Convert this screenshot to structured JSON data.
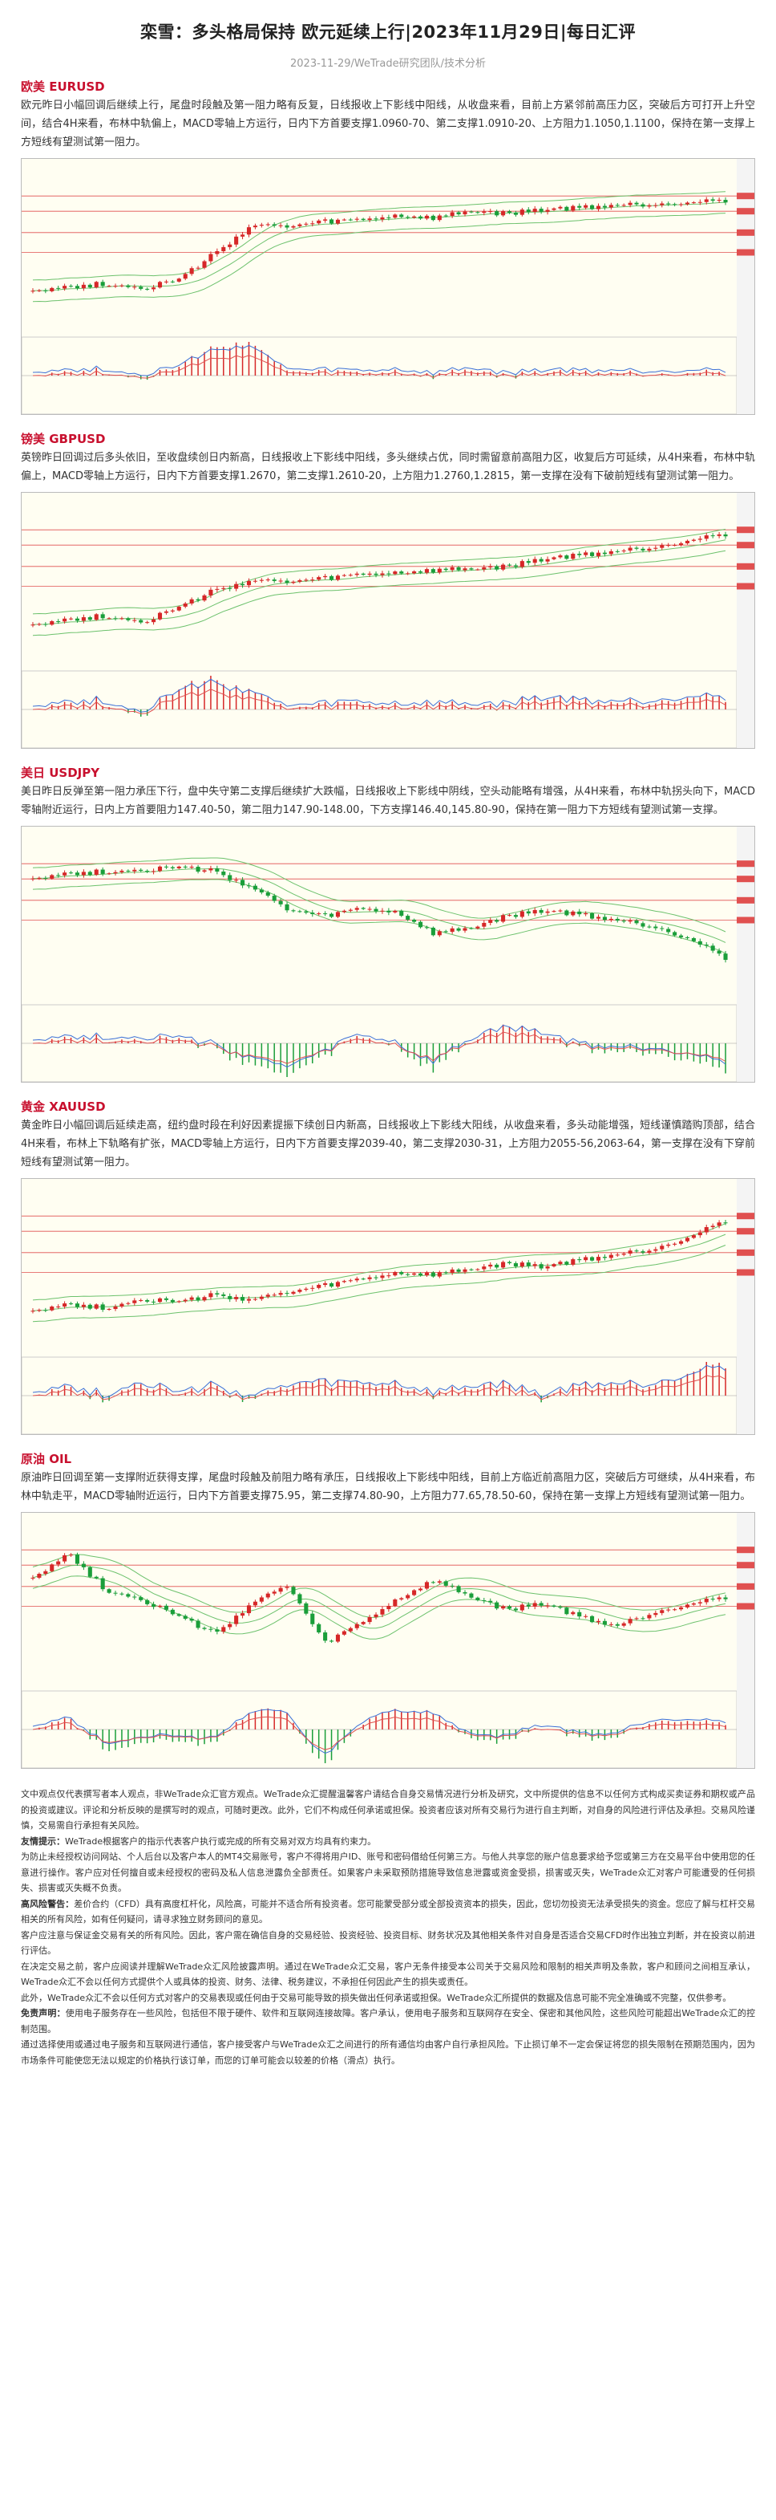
{
  "header": {
    "title": "栾雪：多头格局保持 欧元延续上行|2023年11月29日|每日汇评",
    "subtitle": "2023-11-29/WeTrade研究团队/技术分析"
  },
  "sections": [
    {
      "title": "欧美 EURUSD",
      "text": "欧元昨日小幅回调后继续上行，尾盘时段触及第一阻力略有反复，日线报收上下影线中阳线，从收盘来看，目前上方紧邻前高压力区，突破后方可打开上升空间，结合4H来看，布林中轨偏上，MACD零轴上方运行，日内下方首要支撑1.0960-70、第二支撑1.0910-20、上方阻力1.1050,1.1100，保持在第一支撑上方短线有望测试第一阻力。"
    },
    {
      "title": "镑美 GBPUSD",
      "text": "英镑昨日回调过后多头依旧，至收盘续创日内新高，日线报收上下影线中阳线，多头继续占优，同时需留意前高阻力区，收复后方可延续，从4H来看，布林中轨偏上，MACD零轴上方运行，日内下方首要支撑1.2670，第二支撑1.2610-20，上方阻力1.2760,1.2815，第一支撑在没有下破前短线有望测试第一阻力。"
    },
    {
      "title": "美日 USDJPY",
      "text": "美日昨日反弹至第一阻力承压下行，盘中失守第二支撑后继续扩大跌幅，日线报收上下影线中阴线，空头动能略有增强，从4H来看，布林中轨拐头向下，MACD零轴附近运行，日内上方首要阻力147.40-50，第二阻力147.90-148.00，下方支撑146.40,145.80-90，保持在第一阻力下方短线有望测试第一支撑。"
    },
    {
      "title": "黄金 XAUUSD",
      "text": "黄金昨日小幅回调后延续走高，纽约盘时段在利好因素提振下续创日内新高，日线报收上下影线大阳线，从收盘来看，多头动能增强，短线谨慎踏购顶部，结合4H来看，布林上下轨略有扩张，MACD零轴上方运行，日内下方首要支撑2039-40，第二支撑2030-31，上方阻力2055-56,2063-64，第一支撑在没有下穿前短线有望测试第一阻力。"
    },
    {
      "title": "原油 OIL",
      "text": "原油昨日回调至第一支撑附近获得支撑，尾盘时段触及前阻力略有承压，日线报收上下影线中阳线，目前上方临近前高阻力区，突破后方可继续，从4H来看，布林中轨走平，MACD零轴附近运行，日内下方首要支撑75.95，第二支撑74.80-90，上方阻力77.65,78.50-60，保持在第一支撑上方短线有望测试第一阻力。"
    }
  ],
  "chart_data": [
    {
      "type": "candlestick",
      "series": [
        {
          "name": "EURUSD",
          "trend": "up",
          "values": [
            1.0505,
            1.052,
            1.054,
            1.0515,
            1.056,
            1.071,
            1.087,
            1.086,
            1.089,
            1.09,
            1.0925,
            1.091,
            1.095,
            1.0935,
            1.096,
            1.097,
            1.0985,
            1.099,
            1.1005,
            1.1015
          ]
        }
      ]
    },
    {
      "type": "candlestick",
      "series": [
        {
          "name": "GBPUSD",
          "trend": "up",
          "values": [
            1.227,
            1.229,
            1.231,
            1.228,
            1.235,
            1.244,
            1.249,
            1.248,
            1.25,
            1.252,
            1.253,
            1.254,
            1.255,
            1.256,
            1.26,
            1.262,
            1.264,
            1.266,
            1.27,
            1.273
          ]
        }
      ]
    },
    {
      "type": "candlestick",
      "series": [
        {
          "name": "USDJPY",
          "trend": "down",
          "values": [
            151.3,
            151.5,
            151.6,
            151.7,
            151.8,
            151.6,
            150.8,
            149.6,
            149.3,
            149.7,
            149.5,
            148.4,
            148.7,
            149.3,
            149.6,
            149.4,
            149.1,
            148.8,
            148.2,
            147.2
          ]
        }
      ]
    },
    {
      "type": "candlestick",
      "series": [
        {
          "name": "XAUUSD",
          "trend": "up",
          "values": [
            1950,
            1956,
            1952,
            1962,
            1958,
            1966,
            1961,
            1968,
            1976,
            1983,
            1990,
            1988,
            1994,
            2000,
            1997,
            2004,
            2010,
            2016,
            2030,
            2048
          ]
        }
      ]
    },
    {
      "type": "candlestick",
      "series": [
        {
          "name": "OIL",
          "trend": "range",
          "values": [
            78.5,
            80.2,
            77.5,
            76.8,
            75.5,
            74.2,
            76.5,
            77.8,
            73.5,
            75.0,
            76.8,
            78.2,
            77.0,
            76.0,
            76.5,
            75.5,
            74.8,
            75.8,
            76.5,
            77.0
          ]
        }
      ]
    }
  ],
  "disclaimer": [
    {
      "label": "",
      "text": "文中观点仅代表撰写者本人观点，非WeTrade众汇官方观点。WeTrade众汇提醒温馨客户请结合自身交易情况进行分析及研究，文中所提供的信息不以任何方式构成买卖证券和期权或产品的投资或建议。评论和分析反映的是撰写时的观点，可随时更改。此外，它们不构成任何承诺或担保。投资者应该对所有交易行为进行自主判断，对自身的风险进行评估及承担。交易风险谨慎，交易需自行承担有关风险。"
    },
    {
      "label": "友情提示：",
      "text": "WeTrade根据客户的指示代表客户执行或完成的所有交易对双方均具有约束力。"
    },
    {
      "label": "",
      "text": "为防止未经授权访问网站、个人后台以及客户本人的MT4交易账号，客户不得将用户ID、账号和密码借给任何第三方。与他人共享您的账户信息要求给予您或第三方在交易平台中使用您的任意进行操作。客户应对任何擅自或未经授权的密码及私人信息泄露负全部责任。如果客户未采取预防措施导致信息泄露或资金受损，损害或灭失，WeTrade众汇对客户可能遭受的任何损失、损害或灭失概不负责。"
    },
    {
      "label": "高风险警告：",
      "text": "差价合约（CFD）具有高度杠杆化，风险高，可能并不适合所有投资者。您可能蒙受部分或全部投资资本的损失，因此，您切勿投资无法承受损失的资金。您应了解与杠杆交易相关的所有风险，如有任何疑问，请寻求独立财务顾问的意见。"
    },
    {
      "label": "",
      "text": "客户应注意与保证金交易有关的所有风险。因此，客户需在确信自身的交易经验、投资经验、投资目标、财务状况及其他相关条件对自身是否适合交易CFD时作出独立判断，并在投资以前进行评估。"
    },
    {
      "label": "",
      "text": "在决定交易之前，客户应阅读并理解WeTrade众汇风险披露声明。通过在WeTrade众汇交易，客户无条件接受本公司关于交易风险和限制的相关声明及条款，客户和顾问之间相互承认，WeTrade众汇不会以任何方式提供个人或具体的投资、财务、法律、税务建议，不承担任何因此产生的损失或责任。"
    },
    {
      "label": "",
      "text": "此外，WeTrade众汇不会以任何方式对客户的交易表现或任何由于交易可能导致的损失做出任何承诺或担保。WeTrade众汇所提供的数据及信息可能不完全准确或不完整，仅供参考。"
    },
    {
      "label": "免责声明：",
      "text": "使用电子服务存在一些风险，包括但不限于硬件、软件和互联网连接故障。客户承认，使用电子服务和互联网存在安全、保密和其他风险，这些风险可能超出WeTrade众汇的控制范围。"
    },
    {
      "label": "",
      "text": "通过选择使用或通过电子服务和互联网进行通信，客户接受客户与WeTrade众汇之间进行的所有通信均由客户自行承担风险。下止损订单不一定会保证将您的损失限制在预期范围内，因为市场条件可能使您无法以规定的价格执行该订单，而您的订单可能会以较差的价格（滑点）执行。"
    }
  ]
}
